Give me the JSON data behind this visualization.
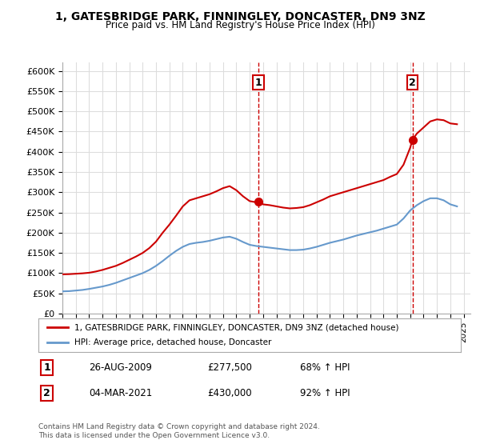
{
  "title": "1, GATESBRIDGE PARK, FINNINGLEY, DONCASTER, DN9 3NZ",
  "subtitle": "Price paid vs. HM Land Registry's House Price Index (HPI)",
  "ylabel": "",
  "ylim": [
    0,
    620000
  ],
  "yticks": [
    0,
    50000,
    100000,
    150000,
    200000,
    250000,
    300000,
    350000,
    400000,
    450000,
    500000,
    550000,
    600000
  ],
  "ytick_labels": [
    "£0",
    "£50K",
    "£100K",
    "£150K",
    "£200K",
    "£250K",
    "£300K",
    "£350K",
    "£400K",
    "£450K",
    "£500K",
    "£550K",
    "£600K"
  ],
  "xlim_start": 1995.0,
  "xlim_end": 2025.5,
  "sale1_x": 2009.65,
  "sale1_y": 277500,
  "sale1_label": "1",
  "sale2_x": 2021.17,
  "sale2_y": 430000,
  "sale2_label": "2",
  "red_color": "#cc0000",
  "blue_color": "#6699cc",
  "legend_red": "1, GATESBRIDGE PARK, FINNINGLEY, DONCASTER, DN9 3NZ (detached house)",
  "legend_blue": "HPI: Average price, detached house, Doncaster",
  "table_row1": [
    "1",
    "26-AUG-2009",
    "£277,500",
    "68% ↑ HPI"
  ],
  "table_row2": [
    "2",
    "04-MAR-2021",
    "£430,000",
    "92% ↑ HPI"
  ],
  "footer": "Contains HM Land Registry data © Crown copyright and database right 2024.\nThis data is licensed under the Open Government Licence v3.0.",
  "bg_color": "#ffffff",
  "grid_color": "#dddddd",
  "red_line": {
    "years": [
      1995.0,
      1995.5,
      1996.0,
      1996.5,
      1997.0,
      1997.5,
      1998.0,
      1998.5,
      1999.0,
      1999.5,
      2000.0,
      2000.5,
      2001.0,
      2001.5,
      2002.0,
      2002.5,
      2003.0,
      2003.5,
      2004.0,
      2004.5,
      2005.0,
      2005.5,
      2006.0,
      2006.5,
      2007.0,
      2007.5,
      2008.0,
      2008.5,
      2009.0,
      2009.5,
      2009.65,
      2010.0,
      2010.5,
      2011.0,
      2011.5,
      2012.0,
      2012.5,
      2013.0,
      2013.5,
      2014.0,
      2014.5,
      2015.0,
      2015.5,
      2016.0,
      2016.5,
      2017.0,
      2017.5,
      2018.0,
      2018.5,
      2019.0,
      2019.5,
      2020.0,
      2020.5,
      2021.0,
      2021.17,
      2021.5,
      2022.0,
      2022.5,
      2023.0,
      2023.5,
      2024.0,
      2024.5
    ],
    "values": [
      97000,
      97500,
      98500,
      99500,
      101000,
      104000,
      108000,
      113000,
      118000,
      125000,
      133000,
      141000,
      150000,
      162000,
      178000,
      200000,
      220000,
      242000,
      265000,
      280000,
      285000,
      290000,
      295000,
      302000,
      310000,
      315000,
      305000,
      290000,
      278000,
      275000,
      277500,
      270000,
      268000,
      265000,
      262000,
      260000,
      261000,
      263000,
      268000,
      275000,
      282000,
      290000,
      295000,
      300000,
      305000,
      310000,
      315000,
      320000,
      325000,
      330000,
      338000,
      345000,
      368000,
      410000,
      430000,
      445000,
      460000,
      475000,
      480000,
      478000,
      470000,
      468000
    ]
  },
  "blue_line": {
    "years": [
      1995.0,
      1995.5,
      1996.0,
      1996.5,
      1997.0,
      1997.5,
      1998.0,
      1998.5,
      1999.0,
      1999.5,
      2000.0,
      2000.5,
      2001.0,
      2001.5,
      2002.0,
      2002.5,
      2003.0,
      2003.5,
      2004.0,
      2004.5,
      2005.0,
      2005.5,
      2006.0,
      2006.5,
      2007.0,
      2007.5,
      2008.0,
      2008.5,
      2009.0,
      2009.5,
      2010.0,
      2010.5,
      2011.0,
      2011.5,
      2012.0,
      2012.5,
      2013.0,
      2013.5,
      2014.0,
      2014.5,
      2015.0,
      2015.5,
      2016.0,
      2016.5,
      2017.0,
      2017.5,
      2018.0,
      2018.5,
      2019.0,
      2019.5,
      2020.0,
      2020.5,
      2021.0,
      2021.5,
      2022.0,
      2022.5,
      2023.0,
      2023.5,
      2024.0,
      2024.5
    ],
    "values": [
      55000,
      55500,
      57000,
      58500,
      61000,
      64000,
      67000,
      71000,
      76000,
      82000,
      88000,
      94000,
      100000,
      108000,
      118000,
      130000,
      143000,
      155000,
      165000,
      172000,
      175000,
      177000,
      180000,
      184000,
      188000,
      190000,
      185000,
      177000,
      170000,
      167000,
      165000,
      163000,
      161000,
      159000,
      157000,
      157000,
      158000,
      161000,
      165000,
      170000,
      175000,
      179000,
      183000,
      188000,
      193000,
      197000,
      201000,
      205000,
      210000,
      215000,
      220000,
      235000,
      255000,
      268000,
      278000,
      285000,
      285000,
      280000,
      270000,
      265000
    ]
  }
}
